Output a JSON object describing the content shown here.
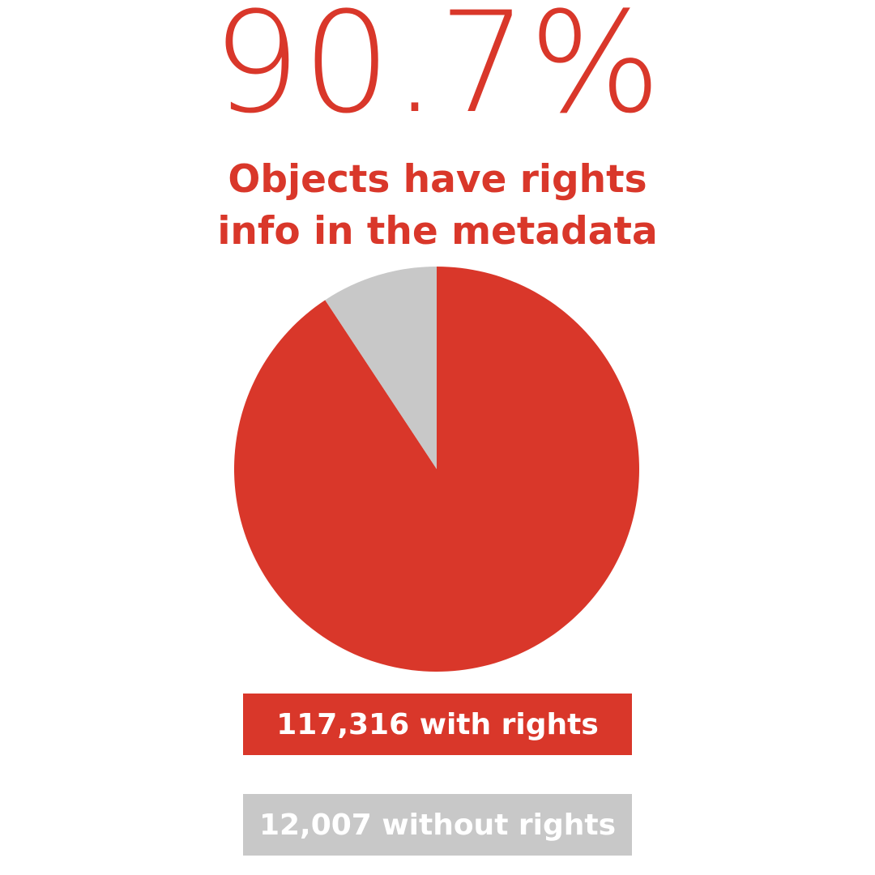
{
  "headline": {
    "percent": "90.7%",
    "subtitle_line1": "Objects have rights",
    "subtitle_line2": "info in the metadata"
  },
  "legend": {
    "with_label": "117,316 with rights",
    "without_label": "12,007 without rights"
  },
  "colors": {
    "with_rights": "#d9372a",
    "without_rights": "#c8c8c8",
    "background": "#ffffff"
  },
  "chart_data": {
    "type": "pie",
    "categories": [
      "with rights",
      "without rights"
    ],
    "values": [
      117316,
      12007
    ],
    "colors": [
      "#d9372a",
      "#c8c8c8"
    ],
    "start_angle_deg": 0,
    "direction": "clockwise",
    "legend_placement": "bottom"
  }
}
